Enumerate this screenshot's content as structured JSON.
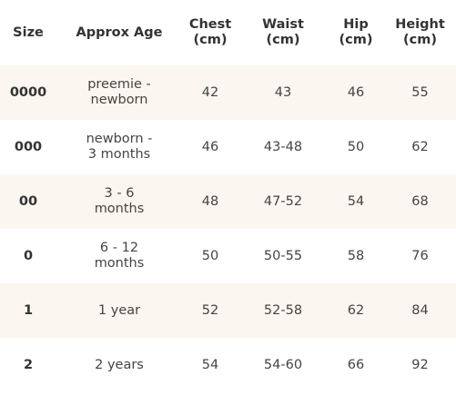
{
  "table": {
    "headers": [
      {
        "line1": "Size",
        "line2": ""
      },
      {
        "line1": "Approx Age",
        "line2": ""
      },
      {
        "line1": "Chest",
        "line2": "(cm)"
      },
      {
        "line1": "Waist",
        "line2": "(cm)"
      },
      {
        "line1": "Hip",
        "line2": "(cm)"
      },
      {
        "line1": "Height",
        "line2": "(cm)"
      }
    ],
    "rows": [
      {
        "size": "0000",
        "age_line1": "preemie -",
        "age_line2": "newborn",
        "chest": "42",
        "waist": "43",
        "hip": "46",
        "height": "55"
      },
      {
        "size": "000",
        "age_line1": "newborn -",
        "age_line2": "3 months",
        "chest": "46",
        "waist": "43-48",
        "hip": "50",
        "height": "62"
      },
      {
        "size": "00",
        "age_line1": "3 - 6",
        "age_line2": "months",
        "chest": "48",
        "waist": "47-52",
        "hip": "54",
        "height": "68"
      },
      {
        "size": "0",
        "age_line1": "6 - 12",
        "age_line2": "months",
        "chest": "50",
        "waist": "50-55",
        "hip": "58",
        "height": "76"
      },
      {
        "size": "1",
        "age_line1": "1 year",
        "age_line2": "",
        "chest": "52",
        "waist": "52-58",
        "hip": "62",
        "height": "84"
      },
      {
        "size": "2",
        "age_line1": "2 years",
        "age_line2": "",
        "chest": "54",
        "waist": "54-60",
        "hip": "66",
        "height": "92"
      }
    ]
  },
  "colors": {
    "shaded_row": "#fcf6f0",
    "text": "#333333"
  }
}
